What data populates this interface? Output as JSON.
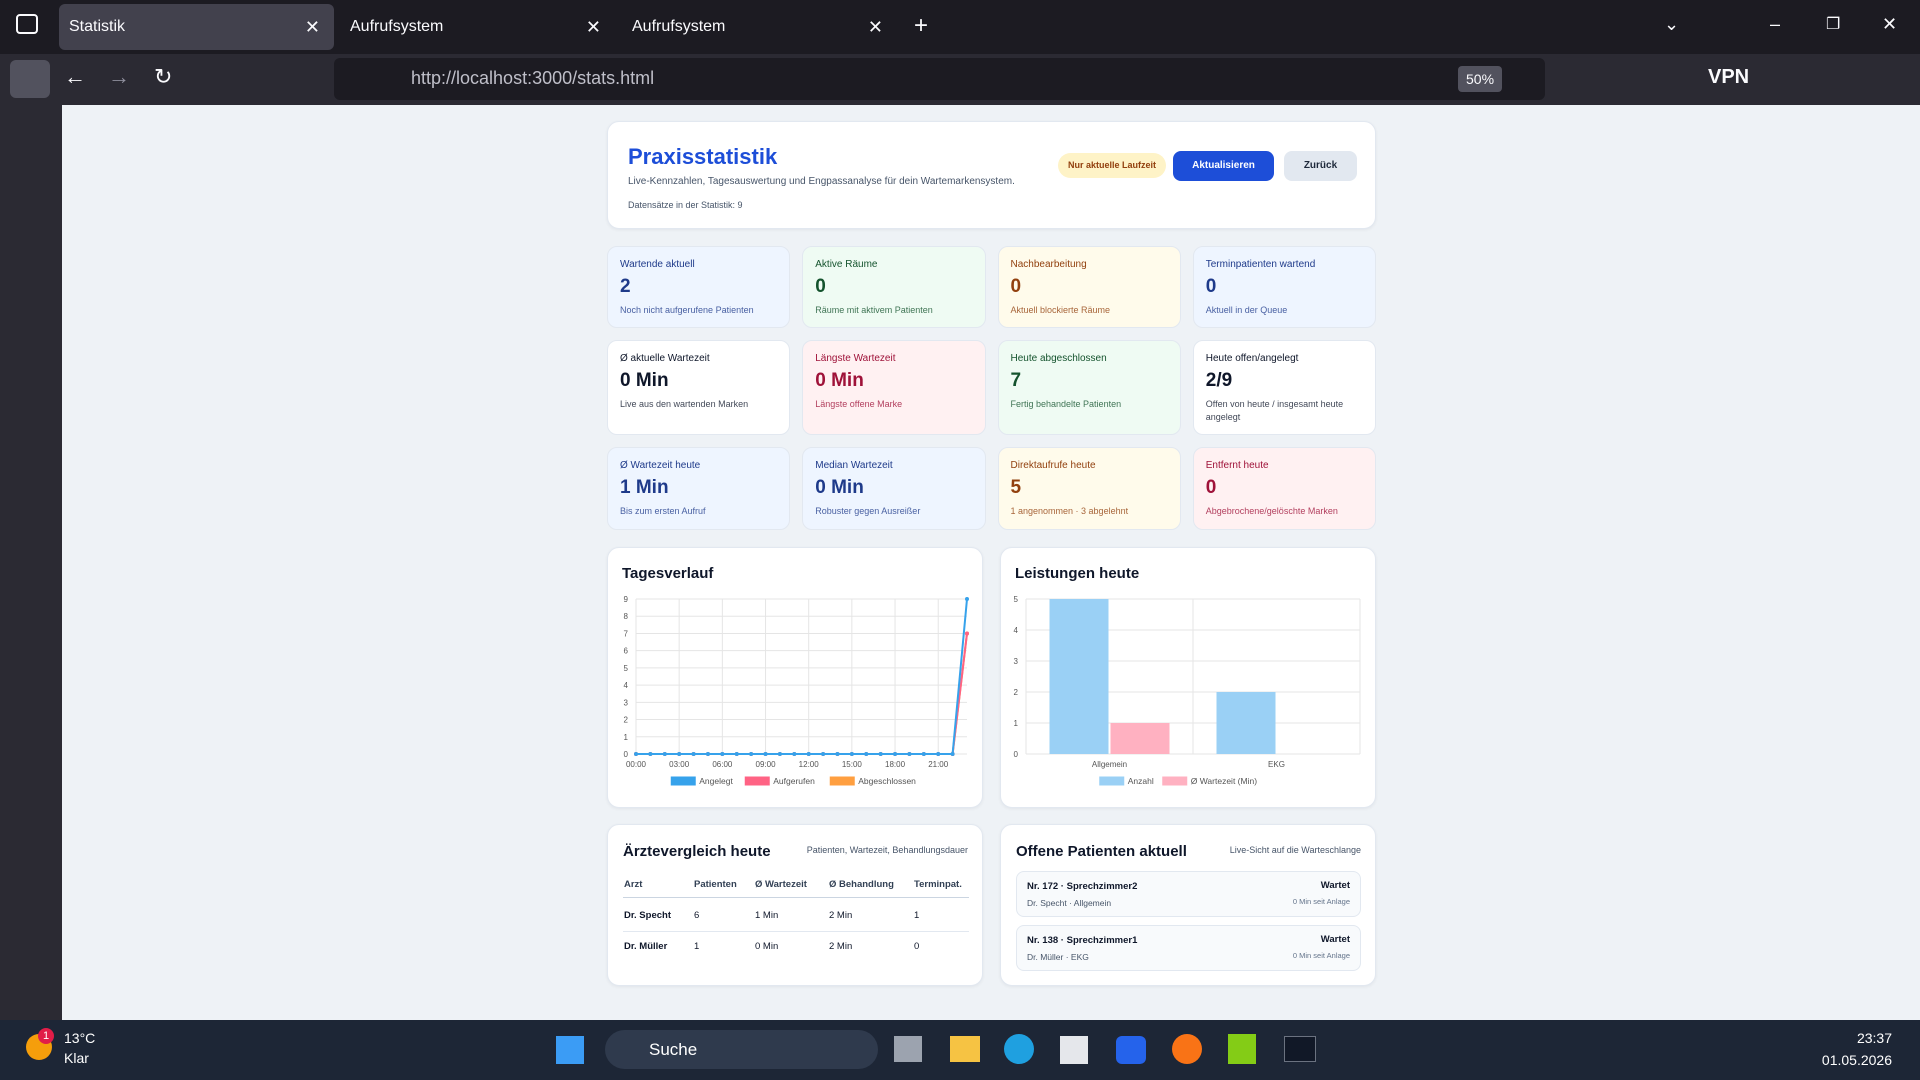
{
  "browser": {
    "tabs": [
      "Statistik",
      "Aufrufsystem",
      "Aufrufsystem"
    ],
    "url_host": "http://localhost",
    "url_path": ":3000/stats.html",
    "zoom": "50%",
    "vpn": "VPN"
  },
  "header": {
    "title": "Praxisstatistik",
    "subtitle": "Live-Kennzahlen, Tagesauswertung und Engpassanalyse für dein Wartemarkensystem.",
    "records": "Datensätze in der Statistik: 9",
    "badge": "Nur aktuelle Laufzeit",
    "refresh": "Aktualisieren",
    "back": "Zurück"
  },
  "cards": [
    {
      "label": "Wartende aktuell",
      "value": 2,
      "note": "Noch nicht aufgerufene Patienten",
      "color": "#1e3a8a",
      "background": "#eef5ff"
    },
    {
      "label": "Aktive Räume",
      "value": 0,
      "note": "Räume mit aktivem Patienten",
      "color": "#14532d",
      "background": "#effbf3"
    },
    {
      "label": "Nachbearbeitung",
      "value": 0,
      "note": "Aktuell blockierte Räume",
      "color": "#92400e",
      "background": "#fffbeb"
    },
    {
      "label": "Terminpatienten wartend",
      "value": 0,
      "note": "Aktuell in der Queue",
      "color": "#1e3a8a",
      "background": "#eef5ff"
    },
    {
      "label": "Ø aktuelle Wartezeit",
      "value": "0 Min",
      "note": "Live aus den wartenden Marken",
      "color": "#0f172a",
      "background": "#ffffff"
    },
    {
      "label": "Längste Wartezeit",
      "value": "0 Min",
      "note": "Längste offene Marke",
      "color": "#9f1239",
      "background": "#fff1f2"
    },
    {
      "label": "Heute abgeschlossen",
      "value": 7,
      "note": "Fertig behandelte Patienten",
      "color": "#14532d",
      "background": "#effbf3"
    },
    {
      "label": "Heute offen/angelegt",
      "value": "2/9",
      "note": "Offen von heute / insgesamt heute angelegt",
      "color": "#0f172a",
      "background": "#ffffff"
    },
    {
      "label": "Ø Wartezeit heute",
      "value": "1 Min",
      "note": "Bis zum ersten Aufruf",
      "color": "#1e3a8a",
      "background": "#eef5ff"
    },
    {
      "label": "Median Wartezeit",
      "value": "0 Min",
      "note": "Robuster gegen Ausreißer",
      "color": "#1e3a8a",
      "background": "#eef5ff"
    },
    {
      "label": "Direktaufrufe heute",
      "value": 5,
      "note": "1 angenommen · 3 abgelehnt",
      "color": "#92400e",
      "background": "#fffbeb"
    },
    {
      "label": "Entfernt heute",
      "value": 0,
      "note": "Abgebrochene/gelöschte Marken",
      "color": "#9f1239",
      "background": "#fff1f2"
    }
  ],
  "chart_data": [
    {
      "type": "line",
      "title": "Tagesverlauf",
      "categories": [
        "00:00",
        null,
        null,
        "03:00",
        null,
        null,
        "06:00",
        null,
        null,
        "09:00",
        null,
        null,
        "12:00",
        null,
        null,
        "15:00",
        null,
        null,
        "18:00",
        null,
        null,
        "21:00",
        null,
        null
      ],
      "series": [
        {
          "name": "Angelegt",
          "color": "#36a2eb",
          "values": [
            0,
            0,
            0,
            0,
            0,
            0,
            0,
            0,
            0,
            0,
            0,
            0,
            0,
            0,
            0,
            0,
            0,
            0,
            0,
            0,
            0,
            0,
            0,
            9
          ]
        },
        {
          "name": "Aufgerufen",
          "color": "#ff6384",
          "values": [
            0,
            0,
            0,
            0,
            0,
            0,
            0,
            0,
            0,
            0,
            0,
            0,
            0,
            0,
            0,
            0,
            0,
            0,
            0,
            0,
            0,
            0,
            0,
            7
          ]
        },
        {
          "name": "Abgeschlossen",
          "color": "#ff9f40",
          "values": [
            0,
            0,
            0,
            0,
            0,
            0,
            0,
            0,
            0,
            0,
            0,
            0,
            0,
            0,
            0,
            0,
            0,
            0,
            0,
            0,
            0,
            0,
            0,
            7
          ]
        }
      ],
      "ylim": [
        0,
        9
      ],
      "yticks": [
        0,
        1,
        2,
        3,
        4,
        5,
        6,
        7,
        8,
        9
      ],
      "grid": true
    },
    {
      "type": "bar",
      "title": "Leistungen heute",
      "categories": [
        "Allgemein",
        "EKG"
      ],
      "series": [
        {
          "name": "Anzahl",
          "color": "#9ad0f5",
          "values": [
            5,
            2
          ]
        },
        {
          "name": "Ø Wartezeit (Min)",
          "color": "#ffb1c1",
          "values": [
            1,
            0
          ]
        }
      ],
      "ylim": [
        0,
        5
      ],
      "yticks": [
        0,
        1,
        2,
        3,
        4,
        5
      ],
      "grid": true
    }
  ],
  "doctors": {
    "title": "Ärztevergleich heute",
    "hint": "Patienten, Wartezeit, Behandlungsdauer",
    "columns": [
      "Arzt",
      "Patienten",
      "Ø Wartezeit",
      "Ø Behandlung",
      "Terminpat."
    ],
    "rows": [
      [
        "Dr. Specht",
        6,
        "1 Min",
        "2 Min",
        1
      ],
      [
        "Dr. Müller",
        1,
        "0 Min",
        "2 Min",
        0
      ]
    ]
  },
  "patients": {
    "title": "Offene Patienten aktuell",
    "hint": "Live-Sicht auf die Warteschlange",
    "items": [
      {
        "title": "Nr. 172 · Sprechzimmer2",
        "sub": "Dr. Specht · Allgemein",
        "status": "Wartet",
        "since": "0 Min seit Anlage"
      },
      {
        "title": "Nr. 138 · Sprechzimmer1",
        "sub": "Dr. Müller · EKG",
        "status": "Wartet",
        "since": "0 Min seit Anlage"
      }
    ]
  },
  "taskbar": {
    "badge": "1",
    "temp": "13°C",
    "weather": "Klar",
    "search": "Suche",
    "time": "23:37",
    "date": "01.05.2026"
  }
}
